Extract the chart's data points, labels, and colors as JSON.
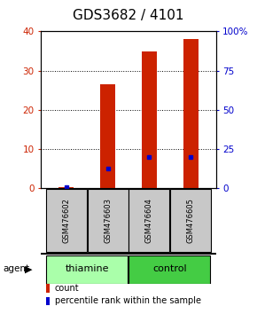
{
  "title": "GDS3682 / 4101",
  "samples": [
    "GSM476602",
    "GSM476603",
    "GSM476604",
    "GSM476605"
  ],
  "counts": [
    0.3,
    26.5,
    35.0,
    38.0
  ],
  "percentile_ranks": [
    1.0,
    12.5,
    20.0,
    20.0
  ],
  "bar_color": "#CC2200",
  "dot_color": "#0000CC",
  "left_ylim": [
    0,
    40
  ],
  "right_ylim": [
    0,
    100
  ],
  "left_yticks": [
    0,
    10,
    20,
    30,
    40
  ],
  "right_yticks": [
    0,
    25,
    50,
    75,
    100
  ],
  "right_yticklabels": [
    "0",
    "25",
    "50",
    "75",
    "100%"
  ],
  "bar_width": 0.35,
  "title_fontsize": 11,
  "axis_label_color_left": "#CC2200",
  "axis_label_color_right": "#0000CC",
  "background_plot": "#FFFFFF",
  "sample_box_color": "#C8C8C8",
  "thiamine_color": "#AAFFAA",
  "control_color": "#44CC44"
}
